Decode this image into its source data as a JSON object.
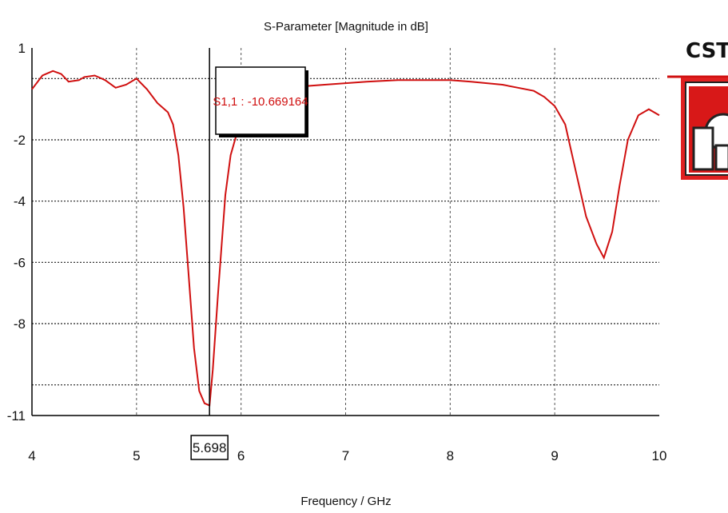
{
  "chart_data": {
    "type": "line",
    "title": "S-Parameter [Magnitude in dB]",
    "xlabel": "Frequency / GHz",
    "ylabel": "",
    "xlim": [
      4,
      10
    ],
    "ylim": [
      -11,
      1
    ],
    "x_ticks": [
      4,
      5,
      6,
      7,
      8,
      9,
      10
    ],
    "y_ticks": [
      1,
      -2,
      -4,
      -6,
      -8,
      -11
    ],
    "grid": true,
    "series": [
      {
        "name": "S1,1",
        "color": "#d01010",
        "x": [
          4.0,
          4.1,
          4.2,
          4.28,
          4.35,
          4.45,
          4.5,
          4.6,
          4.7,
          4.8,
          4.9,
          5.0,
          5.1,
          5.2,
          5.3,
          5.35,
          5.4,
          5.45,
          5.5,
          5.55,
          5.6,
          5.65,
          5.698,
          5.73,
          5.78,
          5.85,
          5.9,
          6.0,
          6.1,
          6.2,
          6.3,
          6.4,
          6.5,
          6.6,
          6.8,
          7.0,
          7.2,
          7.5,
          7.8,
          8.0,
          8.2,
          8.5,
          8.8,
          8.9,
          9.0,
          9.1,
          9.2,
          9.3,
          9.4,
          9.47,
          9.55,
          9.62,
          9.7,
          9.8,
          9.9,
          10.0
        ],
        "y": [
          -0.35,
          0.1,
          0.25,
          0.15,
          -0.1,
          -0.05,
          0.05,
          0.1,
          -0.05,
          -0.3,
          -0.2,
          0.0,
          -0.35,
          -0.8,
          -1.1,
          -1.5,
          -2.5,
          -4.2,
          -6.5,
          -8.8,
          -10.2,
          -10.6,
          -10.67,
          -9.5,
          -7.0,
          -3.8,
          -2.5,
          -1.3,
          -0.9,
          -0.6,
          -0.45,
          -0.35,
          -0.3,
          -0.25,
          -0.2,
          -0.15,
          -0.1,
          -0.05,
          -0.05,
          -0.05,
          -0.1,
          -0.2,
          -0.4,
          -0.6,
          -0.9,
          -1.5,
          -3.0,
          -4.5,
          -5.4,
          -5.85,
          -5.0,
          -3.5,
          -2.0,
          -1.2,
          -1.0,
          -1.2
        ]
      }
    ],
    "marker": {
      "x": 5.698,
      "x_label": "5.698",
      "label": "S1,1 : -10.669164"
    }
  },
  "logo": {
    "text": "CST"
  }
}
